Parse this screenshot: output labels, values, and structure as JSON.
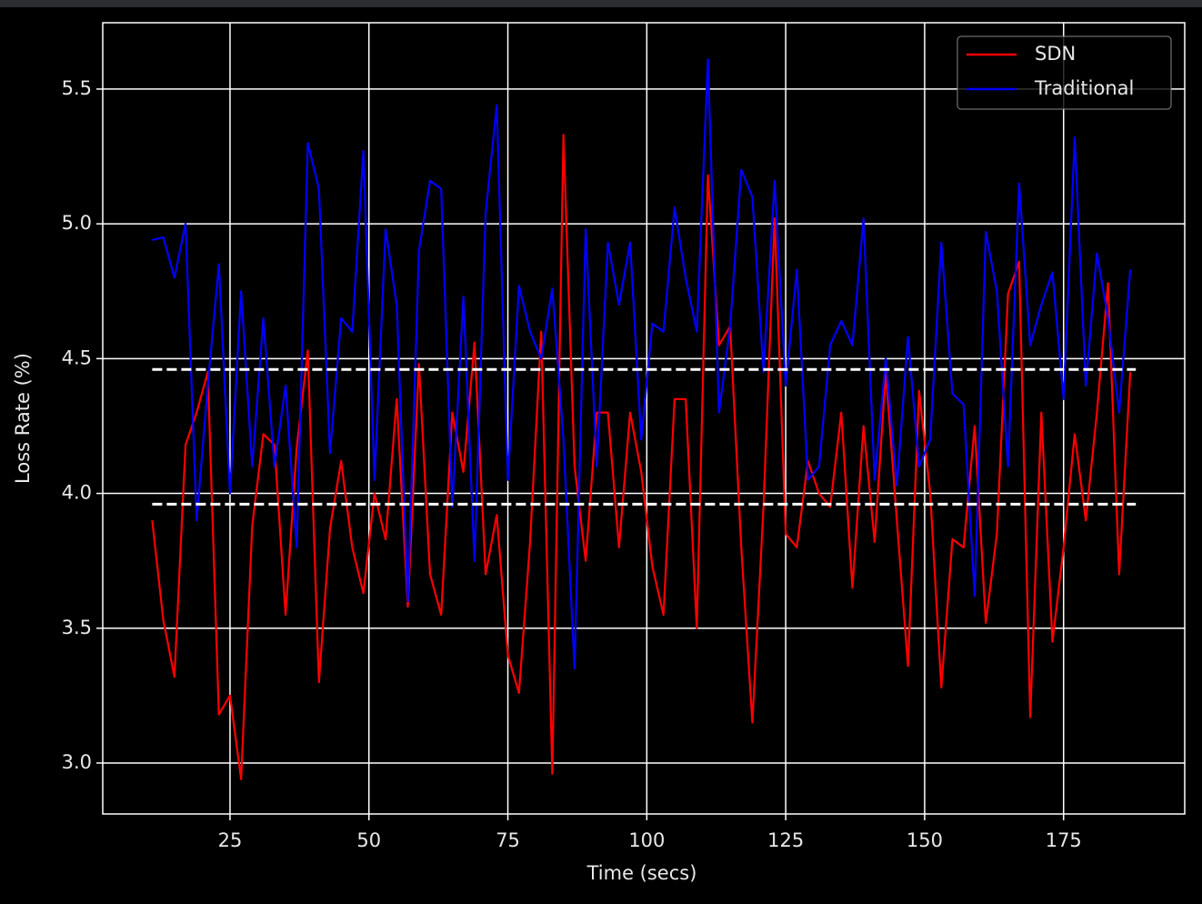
{
  "chart_data": {
    "type": "line",
    "xlabel": "Time (secs)",
    "ylabel": "Loss Rate (%)",
    "x": [
      11,
      13,
      15,
      17,
      19,
      21,
      23,
      25,
      27,
      29,
      31,
      33,
      35,
      37,
      39,
      41,
      43,
      45,
      47,
      49,
      51,
      53,
      55,
      57,
      59,
      61,
      63,
      65,
      67,
      69,
      71,
      73,
      75,
      77,
      79,
      81,
      83,
      85,
      87,
      89,
      91,
      93,
      95,
      97,
      99,
      101,
      103,
      105,
      107,
      109,
      111,
      113,
      115,
      117,
      119,
      121,
      123,
      125,
      127,
      129,
      131,
      133,
      135,
      137,
      139,
      141,
      143,
      145,
      147,
      149,
      151,
      153,
      155,
      157,
      159,
      161,
      163,
      165,
      167,
      169,
      171,
      173,
      175,
      177,
      179,
      181,
      183,
      185,
      187
    ],
    "series": [
      {
        "name": "SDN",
        "color": "#ff0000",
        "values": [
          3.9,
          3.53,
          3.32,
          4.18,
          4.3,
          4.45,
          3.18,
          3.25,
          2.94,
          3.88,
          4.22,
          4.18,
          3.55,
          4.17,
          4.53,
          3.3,
          3.87,
          4.12,
          3.8,
          3.63,
          4.0,
          3.83,
          4.35,
          3.58,
          4.48,
          3.7,
          3.55,
          4.3,
          4.08,
          4.56,
          3.7,
          3.92,
          3.4,
          3.26,
          3.82,
          4.6,
          2.96,
          5.33,
          4.1,
          3.75,
          4.3,
          4.3,
          3.8,
          4.3,
          4.08,
          3.73,
          3.55,
          4.35,
          4.35,
          3.5,
          5.18,
          4.55,
          4.62,
          3.8,
          3.15,
          3.95,
          5.02,
          3.85,
          3.8,
          4.12,
          4.0,
          3.95,
          4.3,
          3.65,
          4.25,
          3.82,
          4.45,
          3.9,
          3.36,
          4.38,
          4.0,
          3.28,
          3.83,
          3.8,
          4.25,
          3.52,
          3.85,
          4.74,
          4.86,
          3.17,
          4.3,
          3.45,
          3.8,
          4.22,
          3.9,
          4.3,
          4.78,
          3.7,
          4.45
        ]
      },
      {
        "name": "Traditional",
        "color": "#0000ff",
        "values": [
          4.94,
          4.95,
          4.8,
          5.0,
          3.9,
          4.4,
          4.85,
          4.0,
          4.75,
          4.1,
          4.65,
          4.1,
          4.4,
          3.8,
          5.3,
          5.13,
          4.15,
          4.65,
          4.6,
          5.27,
          4.05,
          4.98,
          4.7,
          3.6,
          4.9,
          5.16,
          5.13,
          3.95,
          4.73,
          3.75,
          5.04,
          5.44,
          4.05,
          4.77,
          4.6,
          4.5,
          4.76,
          4.2,
          3.35,
          4.98,
          4.1,
          4.93,
          4.7,
          4.93,
          4.2,
          4.63,
          4.6,
          5.06,
          4.8,
          4.6,
          5.61,
          4.3,
          4.62,
          5.2,
          5.1,
          4.45,
          5.16,
          4.4,
          4.83,
          4.05,
          4.1,
          4.55,
          4.64,
          4.55,
          5.02,
          4.05,
          4.5,
          4.03,
          4.58,
          4.1,
          4.2,
          4.93,
          4.37,
          4.33,
          3.62,
          4.97,
          4.75,
          4.1,
          5.15,
          4.55,
          4.7,
          4.82,
          4.35,
          5.32,
          4.4,
          4.89,
          4.65,
          4.3,
          4.83
        ]
      }
    ],
    "hlines": [
      {
        "y": 4.46,
        "xmin": 11,
        "xmax": 188,
        "color": "#ffffff"
      },
      {
        "y": 3.96,
        "xmin": 11,
        "xmax": 188,
        "color": "#ffffff"
      }
    ],
    "xlim": [
      2.1,
      196.8
    ],
    "ylim": [
      2.811,
      5.746
    ],
    "xticks": [
      25,
      50,
      75,
      100,
      125,
      150,
      175
    ],
    "yticks": [
      {
        "value": 3,
        "label": "3.0"
      },
      3.5,
      {
        "value": 4,
        "label": "4.0"
      },
      4.5,
      {
        "value": 5,
        "label": "5.0"
      },
      5.5
    ],
    "grid": true,
    "legend": "upper right"
  }
}
